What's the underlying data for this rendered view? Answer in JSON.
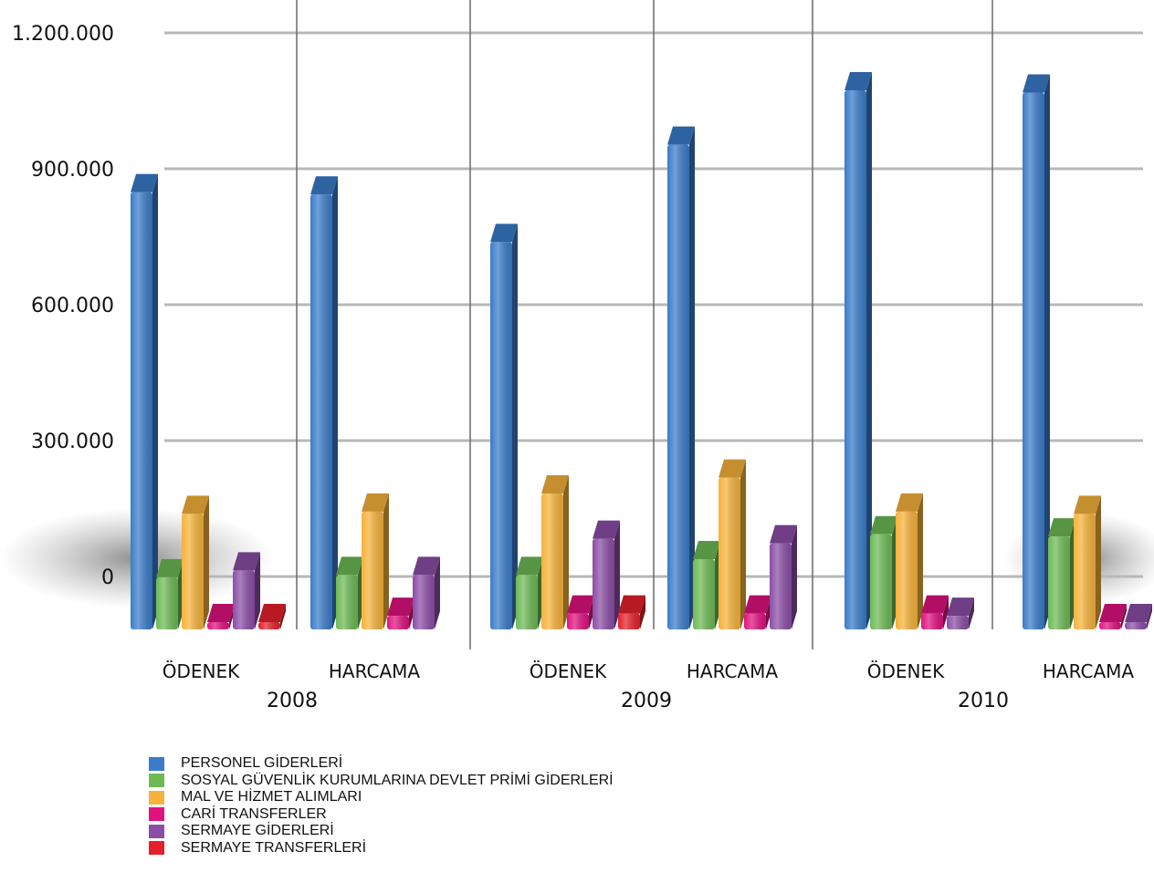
{
  "chart_data": {
    "type": "bar",
    "y_ticks": [
      "0",
      "300.000",
      "600.000",
      "900.000",
      "1.200.000"
    ],
    "ylim": [
      0,
      1200000
    ],
    "groups": [
      {
        "year": "2008",
        "categories": [
          "ÖDENEK",
          "HARCAMA"
        ]
      },
      {
        "year": "2009",
        "categories": [
          "ÖDENEK",
          "HARCAMA"
        ]
      },
      {
        "year": "2010",
        "categories": [
          "ÖDENEK",
          "HARCAMA"
        ]
      }
    ],
    "categories": [
      "2008 ÖDENEK",
      "2008 HARCAMA",
      "2009 ÖDENEK",
      "2009 HARCAMA",
      "2010 ÖDENEK",
      "2010 HARCAMA"
    ],
    "series": [
      {
        "name": "PERSONEL GİDERLERİ",
        "color": "#3a7cc9",
        "values": [
          965000,
          960000,
          855000,
          1070000,
          1190000,
          1185000
        ]
      },
      {
        "name": "SOSYAL GÜVENLİK KURUMLARINA DEVLET PRİMİ GİDERLERİ",
        "color": "#6dba55",
        "values": [
          115000,
          120000,
          120000,
          155000,
          210000,
          205000
        ]
      },
      {
        "name": "MAL VE HİZMET ALIMLARI",
        "color": "#f6b23a",
        "values": [
          255000,
          260000,
          300000,
          335000,
          260000,
          255000
        ]
      },
      {
        "name": "CARİ TRANSFERLER",
        "color": "#e0127f",
        "values": [
          5000,
          30000,
          35000,
          35000,
          35000,
          5000
        ]
      },
      {
        "name": "SERMAYE GİDERLERİ",
        "color": "#8b4ea6",
        "values": [
          130000,
          120000,
          200000,
          190000,
          30000,
          5000
        ]
      },
      {
        "name": "SERMAYE TRANSFERLERİ",
        "color": "#e5202a",
        "values": [
          5000,
          0,
          35000,
          0,
          0,
          0
        ]
      }
    ],
    "legend_position": "bottom-left",
    "grid": true
  }
}
